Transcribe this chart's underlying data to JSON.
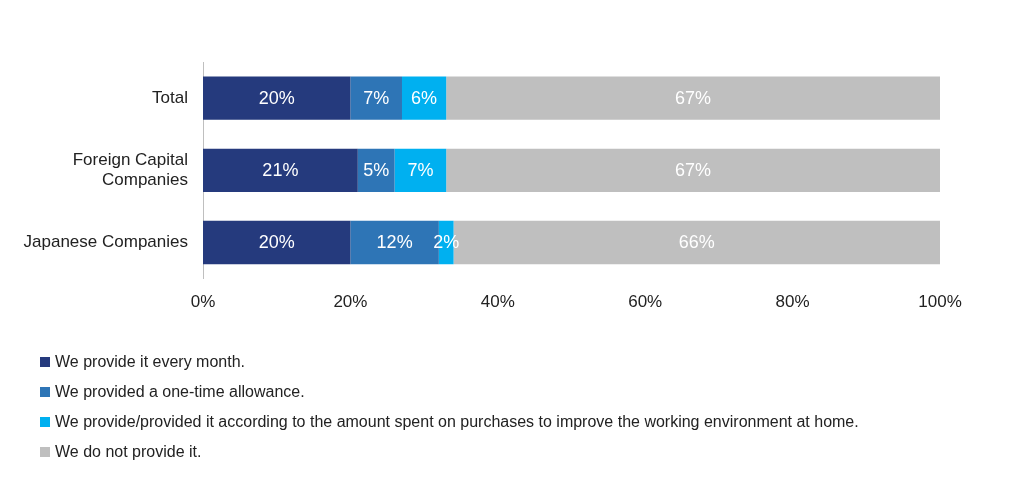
{
  "chart_data": {
    "type": "bar",
    "orientation": "horizontal",
    "stacked": true,
    "categories": [
      "Total",
      "Foreign Capital Companies",
      "Japanese Companies"
    ],
    "series": [
      {
        "name": "We provide it every month.",
        "color": "#253a7d",
        "values": [
          20,
          21,
          20
        ],
        "value_labels": [
          "20%",
          "21%",
          "20%"
        ]
      },
      {
        "name": "We provided a one-time allowance.",
        "color": "#2e75b6",
        "values": [
          7,
          5,
          12
        ],
        "value_labels": [
          "7%",
          "5%",
          "12%"
        ]
      },
      {
        "name": "We provide/provided it according to the amount spent on purchases to improve the working environment at home.",
        "color": "#00b0f0",
        "values": [
          6,
          7,
          2
        ],
        "value_labels": [
          "6%",
          "7%",
          "2%"
        ]
      },
      {
        "name": "We do not provide it.",
        "color": "#bfbfbf",
        "values": [
          67,
          67,
          66
        ],
        "value_labels": [
          "67%",
          "67%",
          "66%"
        ]
      }
    ],
    "xlim": [
      0,
      100
    ],
    "xticks": [
      {
        "value": 0,
        "label": "0%"
      },
      {
        "value": 20,
        "label": "20%"
      },
      {
        "value": 40,
        "label": "40%"
      },
      {
        "value": 60,
        "label": "60%"
      },
      {
        "value": 80,
        "label": "80%"
      },
      {
        "value": 100,
        "label": "100%"
      }
    ],
    "grid": false,
    "legend": "bottom"
  }
}
